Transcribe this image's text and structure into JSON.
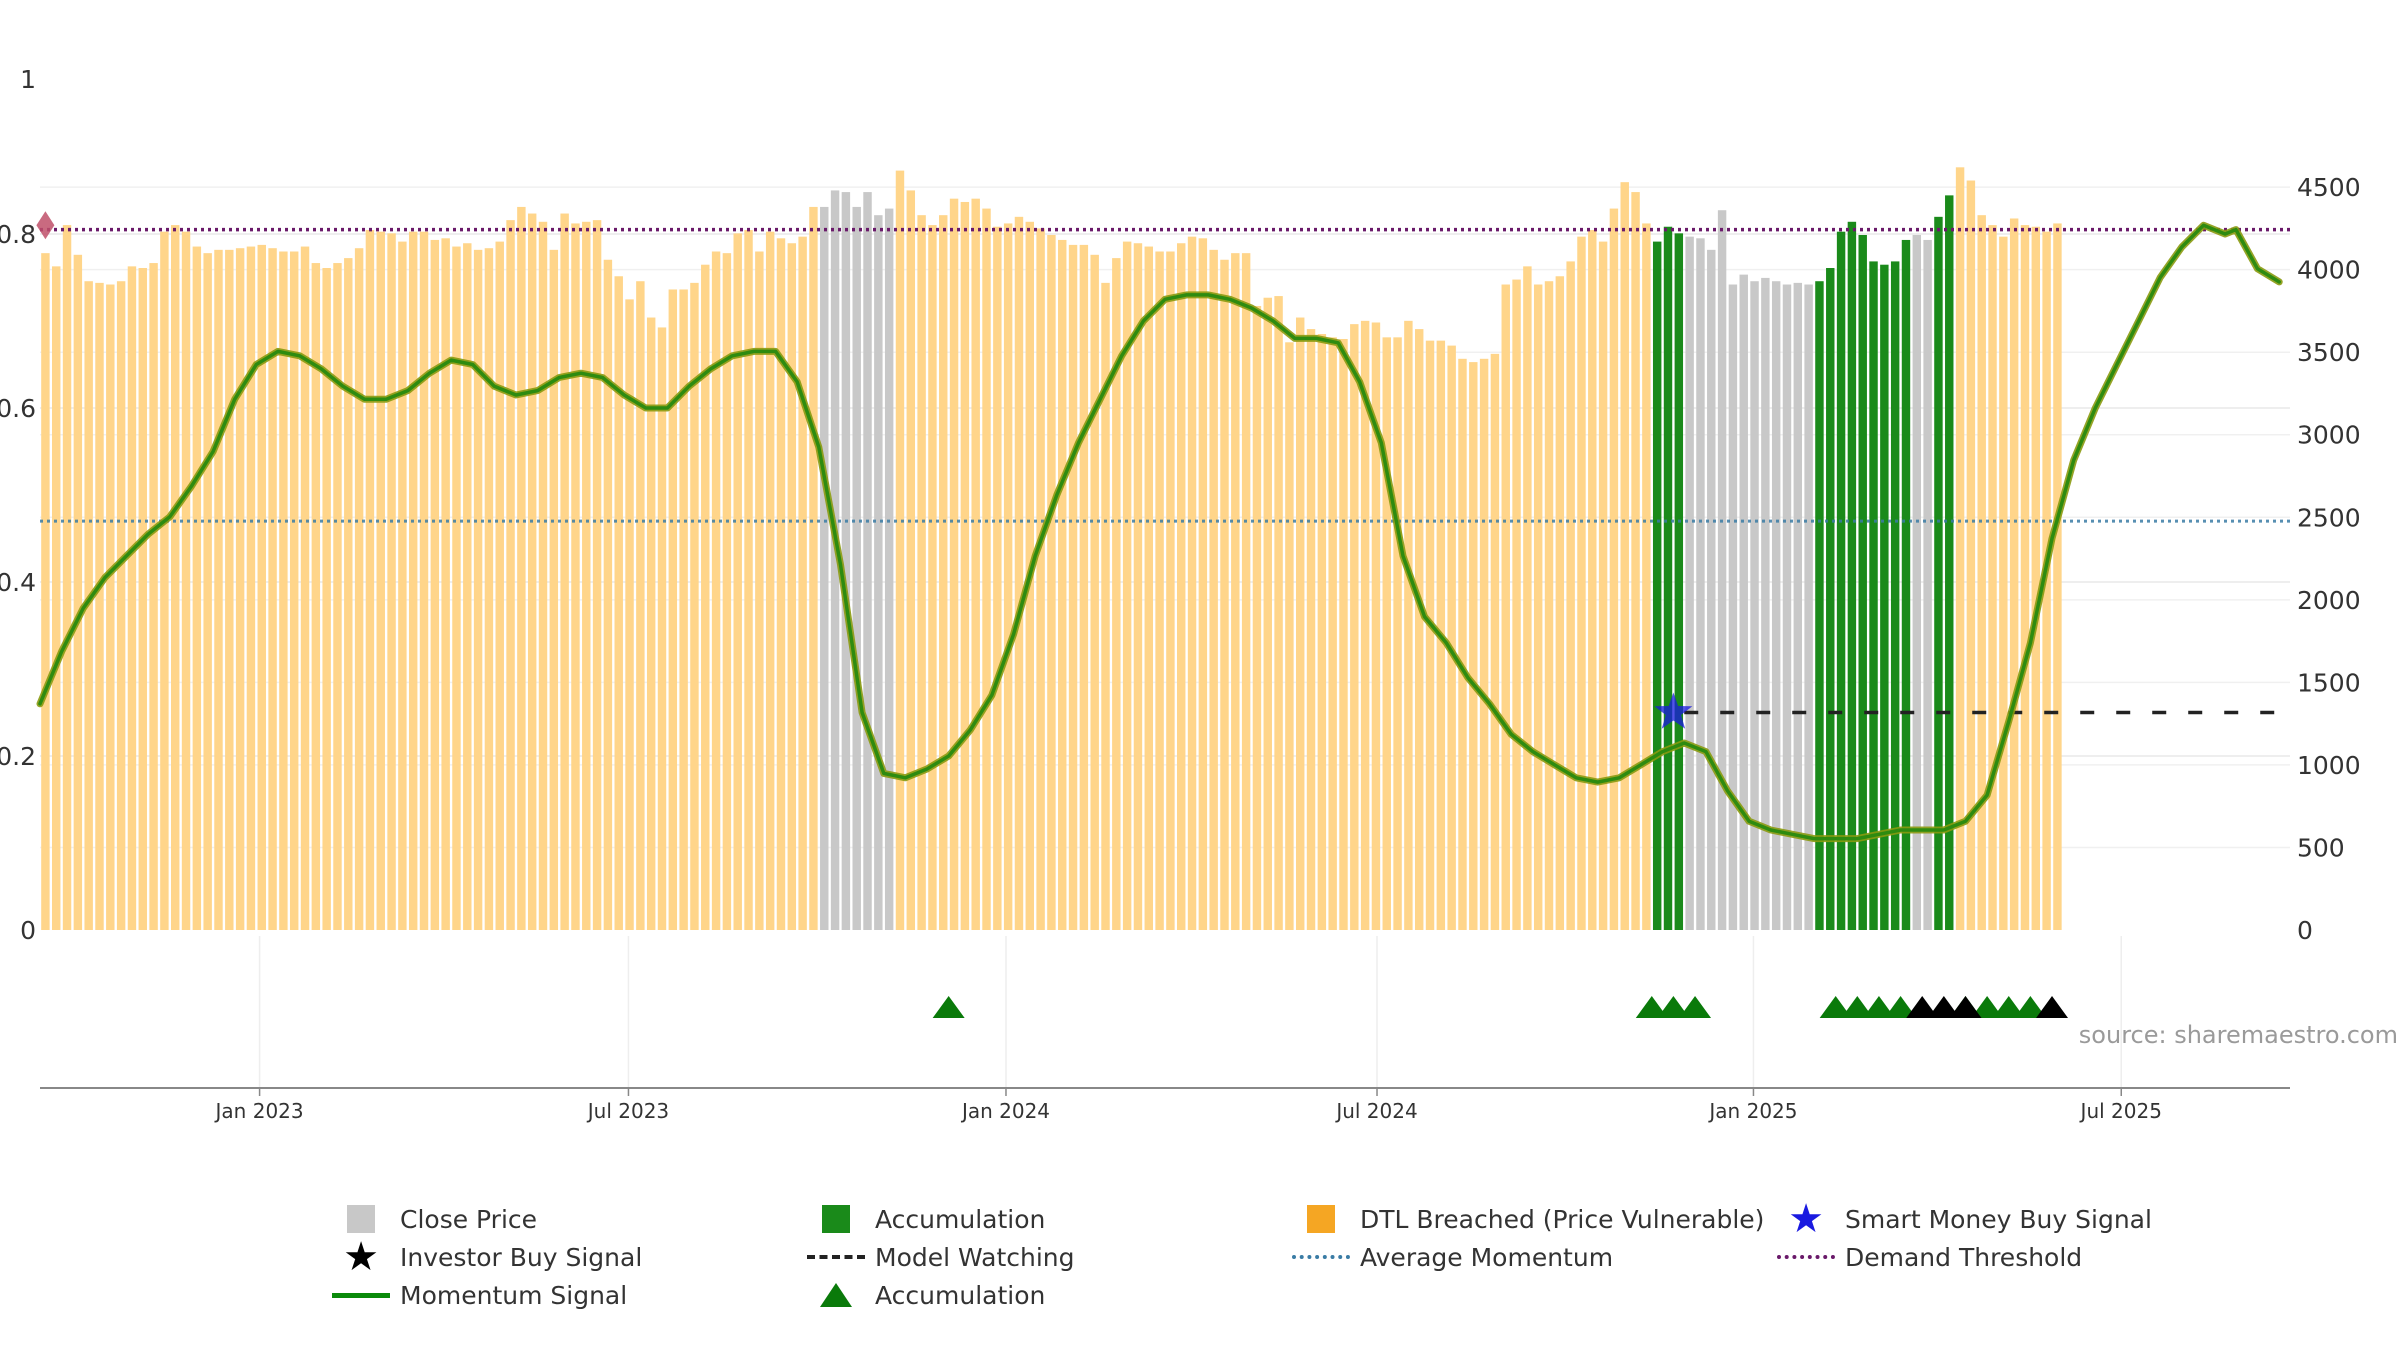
{
  "chart_data": {
    "type": "bar",
    "title": "",
    "source_label": "source: sharemaestro.com",
    "colors": {
      "close": "#c8c8c8",
      "accumulation": "#1a8a1a",
      "dtl": "#ffd58a",
      "momentum": "#2e8b10",
      "momentum_edge": "#8a9a10",
      "average_momentum": "#3a7ca5",
      "demand": "#6a1a6a",
      "model_watching": "#222222",
      "smart_money": "#1a1ae0",
      "investor": "#000000",
      "triangle_green": "#0a7a0a",
      "triangle_black": "#000000",
      "start_marker": "#c0506a"
    },
    "left_axis": {
      "range": [
        0,
        1
      ],
      "ticks": [
        {
          "value": 0,
          "label": "0"
        },
        {
          "value": 0.2,
          "label": "0.2"
        },
        {
          "value": 0.4,
          "label": "0.4"
        },
        {
          "value": 0.6,
          "label": "0.6"
        },
        {
          "value": 0.8,
          "label": "0.8"
        },
        {
          "value": 1,
          "label": "1"
        }
      ]
    },
    "right_axis": {
      "range": [
        0,
        5270
      ],
      "ticks": [
        {
          "value": 0,
          "label": "0"
        },
        {
          "value": 500,
          "label": "500"
        },
        {
          "value": 1000,
          "label": "1000"
        },
        {
          "value": 1500,
          "label": "1500"
        },
        {
          "value": 2000,
          "label": "2000"
        },
        {
          "value": 2500,
          "label": "2500"
        },
        {
          "value": 3000,
          "label": "3000"
        },
        {
          "value": 3500,
          "label": "3500"
        },
        {
          "value": 4000,
          "label": "4000"
        },
        {
          "value": 4500,
          "label": "4500"
        }
      ]
    },
    "x_range": [
      0,
      208
    ],
    "x_ticks": [
      {
        "week": 20.3,
        "label": "Jan 2023"
      },
      {
        "week": 54.4,
        "label": "Jul 2023"
      },
      {
        "week": 89.3,
        "label": "Jan 2024"
      },
      {
        "week": 123.6,
        "label": "Jul 2024"
      },
      {
        "week": 158.4,
        "label": "Jan 2025"
      },
      {
        "week": 192.4,
        "label": "Jul 2025"
      }
    ],
    "bar_values": [
      4100,
      4020,
      4270,
      4090,
      3930,
      3920,
      3910,
      3930,
      4020,
      4010,
      4040,
      4230,
      4270,
      4230,
      4140,
      4100,
      4120,
      4120,
      4130,
      4140,
      4150,
      4130,
      4110,
      4110,
      4140,
      4040,
      4010,
      4040,
      4070,
      4130,
      4240,
      4230,
      4220,
      4170,
      4230,
      4230,
      4180,
      4190,
      4140,
      4160,
      4120,
      4130,
      4170,
      4300,
      4380,
      4340,
      4290,
      4120,
      4340,
      4280,
      4290,
      4300,
      4060,
      3960,
      3820,
      3930,
      3710,
      3650,
      3880,
      3880,
      3920,
      4030,
      4110,
      4100,
      4220,
      4240,
      4110,
      4230,
      4190,
      4160,
      4200,
      4380,
      4380,
      4480,
      4470,
      4380,
      4470,
      4330,
      4370,
      4600,
      4480,
      4330,
      4270,
      4330,
      4430,
      4410,
      4430,
      4370,
      4260,
      4280,
      4320,
      4290,
      4250,
      4210,
      4180,
      4150,
      4150,
      4090,
      3920,
      4070,
      4170,
      4160,
      4140,
      4110,
      4110,
      4160,
      4200,
      4190,
      4120,
      4060,
      4100,
      4100,
      3780,
      3830,
      3840,
      3560,
      3710,
      3640,
      3610,
      3590,
      3580,
      3670,
      3690,
      3680,
      3590,
      3590,
      3690,
      3640,
      3570,
      3570,
      3540,
      3460,
      3440,
      3460,
      3490,
      3910,
      3940,
      4020,
      3910,
      3930,
      3960,
      4050,
      4200,
      4240,
      4170,
      4370,
      4530,
      4470,
      4280,
      4170,
      4260,
      4220,
      4200,
      4190,
      4120,
      4360,
      3910,
      3970,
      3930,
      3950,
      3930,
      3910,
      3920,
      3910,
      3930,
      4010,
      4230,
      4290,
      4210,
      4050,
      4030,
      4050,
      4180,
      4210,
      4180,
      4320,
      4450,
      4620,
      4540,
      4330,
      4270,
      4200,
      4310,
      4270,
      4260,
      4230,
      4280
    ],
    "bar_categories": [
      {
        "start": 0,
        "end": 71,
        "type": "dtl"
      },
      {
        "start": 72,
        "end": 78,
        "type": "close"
      },
      {
        "start": 79,
        "end": 148,
        "type": "dtl"
      },
      {
        "start": 149,
        "end": 151,
        "type": "accumulation"
      },
      {
        "start": 152,
        "end": 163,
        "type": "close"
      },
      {
        "start": 164,
        "end": 172,
        "type": "accumulation"
      },
      {
        "start": 173,
        "end": 174,
        "type": "close"
      },
      {
        "start": 175,
        "end": 176,
        "type": "accumulation"
      },
      {
        "start": 177,
        "end": 207,
        "type": "dtl"
      }
    ],
    "momentum_points": [
      [
        0,
        0.26
      ],
      [
        2,
        0.32
      ],
      [
        4,
        0.37
      ],
      [
        6,
        0.405
      ],
      [
        8,
        0.43
      ],
      [
        10,
        0.455
      ],
      [
        12,
        0.475
      ],
      [
        14,
        0.51
      ],
      [
        16,
        0.55
      ],
      [
        18,
        0.61
      ],
      [
        20,
        0.65
      ],
      [
        22,
        0.665
      ],
      [
        24,
        0.66
      ],
      [
        26,
        0.645
      ],
      [
        28,
        0.625
      ],
      [
        30,
        0.61
      ],
      [
        32,
        0.61
      ],
      [
        34,
        0.62
      ],
      [
        36,
        0.64
      ],
      [
        38,
        0.655
      ],
      [
        40,
        0.65
      ],
      [
        42,
        0.625
      ],
      [
        44,
        0.615
      ],
      [
        46,
        0.62
      ],
      [
        48,
        0.635
      ],
      [
        50,
        0.64
      ],
      [
        52,
        0.635
      ],
      [
        54,
        0.615
      ],
      [
        56,
        0.6
      ],
      [
        58,
        0.6
      ],
      [
        60,
        0.625
      ],
      [
        62,
        0.645
      ],
      [
        64,
        0.66
      ],
      [
        66,
        0.665
      ],
      [
        68,
        0.665
      ],
      [
        70,
        0.63
      ],
      [
        72,
        0.555
      ],
      [
        74,
        0.42
      ],
      [
        76,
        0.25
      ],
      [
        78,
        0.18
      ],
      [
        80,
        0.175
      ],
      [
        82,
        0.185
      ],
      [
        84,
        0.2
      ],
      [
        86,
        0.23
      ],
      [
        88,
        0.27
      ],
      [
        90,
        0.34
      ],
      [
        92,
        0.43
      ],
      [
        94,
        0.5
      ],
      [
        96,
        0.56
      ],
      [
        98,
        0.61
      ],
      [
        100,
        0.66
      ],
      [
        102,
        0.7
      ],
      [
        104,
        0.725
      ],
      [
        106,
        0.73
      ],
      [
        108,
        0.73
      ],
      [
        110,
        0.725
      ],
      [
        112,
        0.715
      ],
      [
        114,
        0.7
      ],
      [
        116,
        0.68
      ],
      [
        118,
        0.68
      ],
      [
        120,
        0.675
      ],
      [
        122,
        0.63
      ],
      [
        124,
        0.56
      ],
      [
        126,
        0.43
      ],
      [
        128,
        0.36
      ],
      [
        130,
        0.33
      ],
      [
        132,
        0.29
      ],
      [
        134,
        0.26
      ],
      [
        136,
        0.225
      ],
      [
        138,
        0.205
      ],
      [
        140,
        0.19
      ],
      [
        142,
        0.175
      ],
      [
        144,
        0.17
      ],
      [
        146,
        0.175
      ],
      [
        148,
        0.19
      ],
      [
        150,
        0.205
      ],
      [
        152,
        0.215
      ],
      [
        154,
        0.205
      ],
      [
        156,
        0.16
      ],
      [
        158,
        0.125
      ],
      [
        160,
        0.115
      ],
      [
        162,
        0.11
      ],
      [
        164,
        0.105
      ],
      [
        166,
        0.105
      ],
      [
        168,
        0.105
      ],
      [
        170,
        0.11
      ],
      [
        172,
        0.115
      ],
      [
        174,
        0.115
      ],
      [
        176,
        0.115
      ],
      [
        178,
        0.125
      ],
      [
        180,
        0.155
      ],
      [
        182,
        0.24
      ],
      [
        184,
        0.33
      ],
      [
        186,
        0.45
      ],
      [
        188,
        0.54
      ],
      [
        190,
        0.6
      ],
      [
        192,
        0.65
      ],
      [
        194,
        0.7
      ],
      [
        196,
        0.75
      ],
      [
        198,
        0.785
      ],
      [
        200,
        0.81
      ],
      [
        202,
        0.8
      ],
      [
        203,
        0.805
      ],
      [
        205,
        0.76
      ],
      [
        207,
        0.745
      ]
    ],
    "average_momentum": 0.47,
    "demand_threshold": 0.805,
    "model_watching": {
      "level": 0.25,
      "start_week": 152,
      "end_week": 207
    },
    "smart_money_signals": [
      {
        "week": 151,
        "value": 0.25
      }
    ],
    "start_marker": {
      "week": 0.5,
      "value": 0.81
    },
    "accumulation_triangles_green": [
      84,
      149,
      151,
      153,
      166,
      168,
      170,
      172,
      178,
      180,
      182,
      184
    ],
    "investor_triangles_black": [
      174,
      176,
      178,
      186
    ],
    "legend": [
      {
        "label": "Close Price",
        "swatch": "square",
        "color_key": "close"
      },
      {
        "label": "Accumulation",
        "swatch": "square",
        "color_key": "accumulation"
      },
      {
        "label": "DTL Breached (Price Vulnerable)",
        "swatch": "square",
        "color_key": "dtl_legend"
      },
      {
        "label": "Smart Money Buy Signal",
        "swatch": "star",
        "color_key": "smart_money"
      },
      {
        "label": "Investor Buy Signal",
        "swatch": "star",
        "color_key": "investor"
      },
      {
        "label": "Model Watching",
        "swatch": "dash",
        "color_key": "model_watching"
      },
      {
        "label": "Average Momentum",
        "swatch": "dot",
        "color_key": "average_momentum"
      },
      {
        "label": "Demand Threshold",
        "swatch": "dot",
        "color_key": "demand"
      },
      {
        "label": "Momentum Signal",
        "swatch": "line",
        "color_key": "momentum_legend"
      },
      {
        "label": "Accumulation",
        "swatch": "triangle",
        "color_key": "triangle_green"
      }
    ],
    "legend_colors": {
      "dtl_legend": "#f5a623",
      "momentum_legend": "#0a8a0a"
    }
  }
}
